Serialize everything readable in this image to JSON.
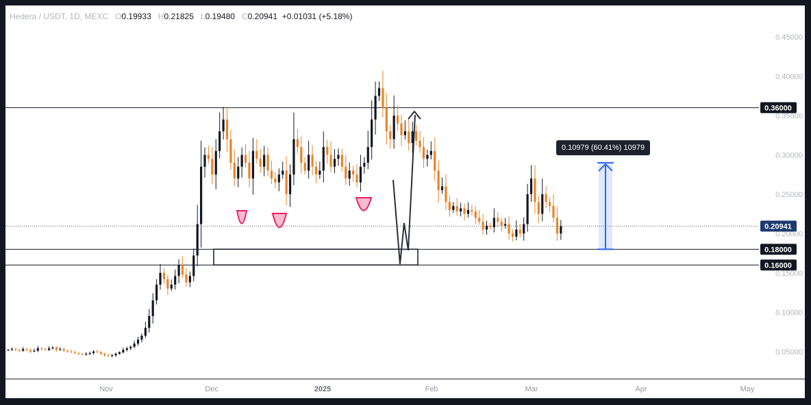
{
  "header": {
    "symbol": "Hedera / USDT, 1D, MEXC",
    "open_label": "O",
    "open": "0.19933",
    "high_label": "H",
    "high": "0.21825",
    "low_label": "L",
    "low": "0.19480",
    "close_label": "C",
    "close": "0.20941",
    "change": "+0.01031 (+5.18%)"
  },
  "colors": {
    "up": "#131722",
    "down": "#e8842a",
    "level_line": "#131722",
    "measure": "#2962ff",
    "curve": "#e91e63",
    "current_price": "#1e3a6e"
  },
  "measure_label": "0.10979 (60.41%) 10979",
  "price_labels": {
    "resistance": "0.36000",
    "current": "0.20941",
    "support_top": "0.18000",
    "support_bottom": "0.16000"
  },
  "chart_data": {
    "type": "candlestick",
    "y_ticks": [
      "0.45000",
      "0.40000",
      "0.35000",
      "0.30000",
      "0.25000",
      "0.20000",
      "0.15000",
      "0.10000",
      "0.05000"
    ],
    "x_ticks": [
      "Nov",
      "Dec",
      "2025",
      "Feb",
      "Mar",
      "Apr",
      "May"
    ],
    "ylim": [
      0.015,
      0.49
    ],
    "horizontal_levels": [
      0.36,
      0.18,
      0.16,
      0.20941
    ],
    "zone": {
      "from": 0.16,
      "to": 0.18
    },
    "measure": {
      "from": 0.18,
      "to": 0.29,
      "change": 0.10979,
      "percent": 60.41
    },
    "closes": [
      0.052,
      0.053,
      0.052,
      0.051,
      0.053,
      0.052,
      0.05,
      0.051,
      0.054,
      0.053,
      0.052,
      0.054,
      0.055,
      0.052,
      0.053,
      0.051,
      0.05,
      0.049,
      0.048,
      0.047,
      0.046,
      0.047,
      0.048,
      0.05,
      0.049,
      0.047,
      0.045,
      0.044,
      0.045,
      0.047,
      0.049,
      0.052,
      0.054,
      0.056,
      0.06,
      0.065,
      0.07,
      0.08,
      0.095,
      0.115,
      0.135,
      0.15,
      0.142,
      0.13,
      0.135,
      0.146,
      0.16,
      0.148,
      0.138,
      0.146,
      0.172,
      0.212,
      0.285,
      0.3,
      0.295,
      0.275,
      0.305,
      0.33,
      0.345,
      0.32,
      0.29,
      0.27,
      0.285,
      0.3,
      0.29,
      0.27,
      0.305,
      0.295,
      0.285,
      0.3,
      0.28,
      0.27,
      0.265,
      0.275,
      0.28,
      0.25,
      0.275,
      0.32,
      0.31,
      0.29,
      0.28,
      0.3,
      0.285,
      0.275,
      0.28,
      0.31,
      0.3,
      0.285,
      0.295,
      0.3,
      0.285,
      0.27,
      0.28,
      0.275,
      0.265,
      0.285,
      0.29,
      0.31,
      0.345,
      0.375,
      0.385,
      0.36,
      0.33,
      0.32,
      0.35,
      0.34,
      0.325,
      0.33,
      0.315,
      0.33,
      0.318,
      0.31,
      0.295,
      0.3,
      0.305,
      0.28,
      0.255,
      0.26,
      0.24,
      0.23,
      0.235,
      0.228,
      0.232,
      0.225,
      0.23,
      0.228,
      0.22,
      0.215,
      0.205,
      0.21,
      0.208,
      0.22,
      0.215,
      0.21,
      0.212,
      0.2,
      0.196,
      0.205,
      0.2,
      0.212,
      0.25,
      0.27,
      0.24,
      0.225,
      0.25,
      0.24,
      0.235,
      0.22,
      0.2,
      0.20941
    ]
  }
}
